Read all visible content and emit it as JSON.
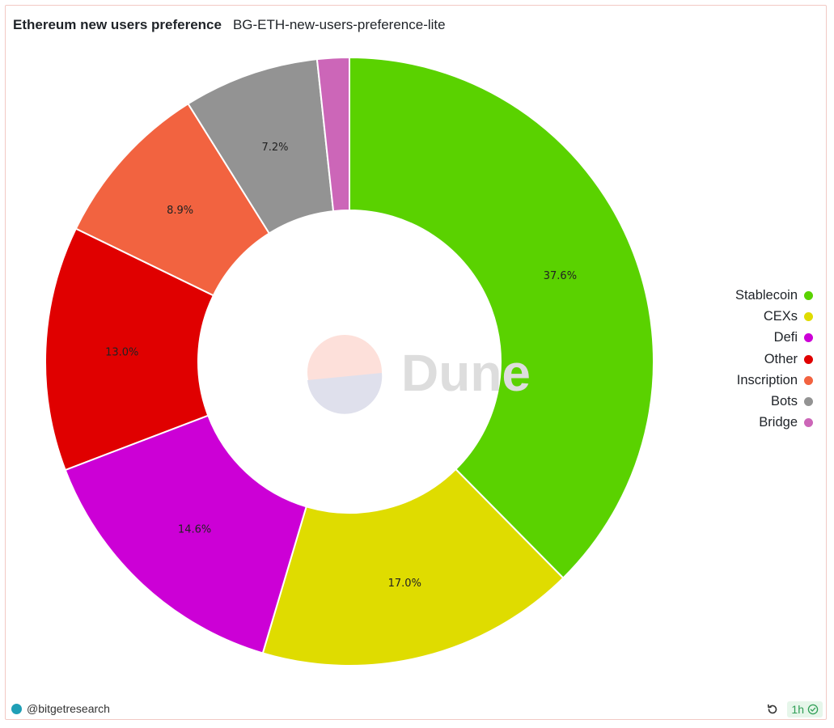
{
  "header": {
    "title": "Ethereum new users preference",
    "subtitle": "BG-ETH-new-users-preference-lite"
  },
  "watermark": {
    "text": "Dune"
  },
  "footer": {
    "author": "@bitgetresearch",
    "refresh_interval": "1h",
    "icons": {
      "avatar": "bitget-avatar-icon",
      "refresh": "refresh-icon",
      "status": "check-circle-icon"
    }
  },
  "chart_data": {
    "type": "pie",
    "variant": "donut",
    "legend_position": "right",
    "slices": [
      {
        "name": "Stablecoin",
        "value": 37.6,
        "label": "37.6%",
        "color": "#5ad200"
      },
      {
        "name": "CEXs",
        "value": 17.0,
        "label": "17.0%",
        "color": "#dfdc00"
      },
      {
        "name": "Defi",
        "value": 14.6,
        "label": "14.6%",
        "color": "#cc00d6"
      },
      {
        "name": "Other",
        "value": 13.0,
        "label": "13.0%",
        "color": "#e00000"
      },
      {
        "name": "Inscription",
        "value": 8.9,
        "label": "8.9%",
        "color": "#f26340"
      },
      {
        "name": "Bots",
        "value": 7.2,
        "label": "7.2%",
        "color": "#939393"
      },
      {
        "name": "Bridge",
        "value": 1.7,
        "label": "",
        "color": "#cc66b8"
      }
    ]
  }
}
